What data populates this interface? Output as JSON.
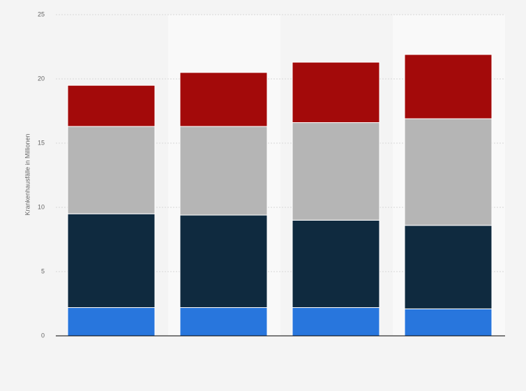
{
  "chart_data": {
    "type": "stacked-bar",
    "y_label": "Krankenhausfälle in Millionen",
    "categories": [
      null,
      null,
      null,
      null
    ],
    "series": [
      {
        "color": "#2876dd",
        "values": [
          2.2,
          2.2,
          2.2,
          2.1
        ]
      },
      {
        "color": "#0f2a3f",
        "values": [
          7.3,
          7.2,
          6.8,
          6.5
        ]
      },
      {
        "color": "#b5b5b5",
        "values": [
          6.8,
          6.9,
          7.6,
          8.3
        ]
      },
      {
        "color": "#a30a0a",
        "values": [
          3.2,
          4.2,
          4.7,
          5.0
        ]
      }
    ],
    "ylim": [
      0,
      25
    ],
    "yticks": [
      0,
      5,
      10,
      15,
      20,
      25
    ],
    "grid": true
  }
}
